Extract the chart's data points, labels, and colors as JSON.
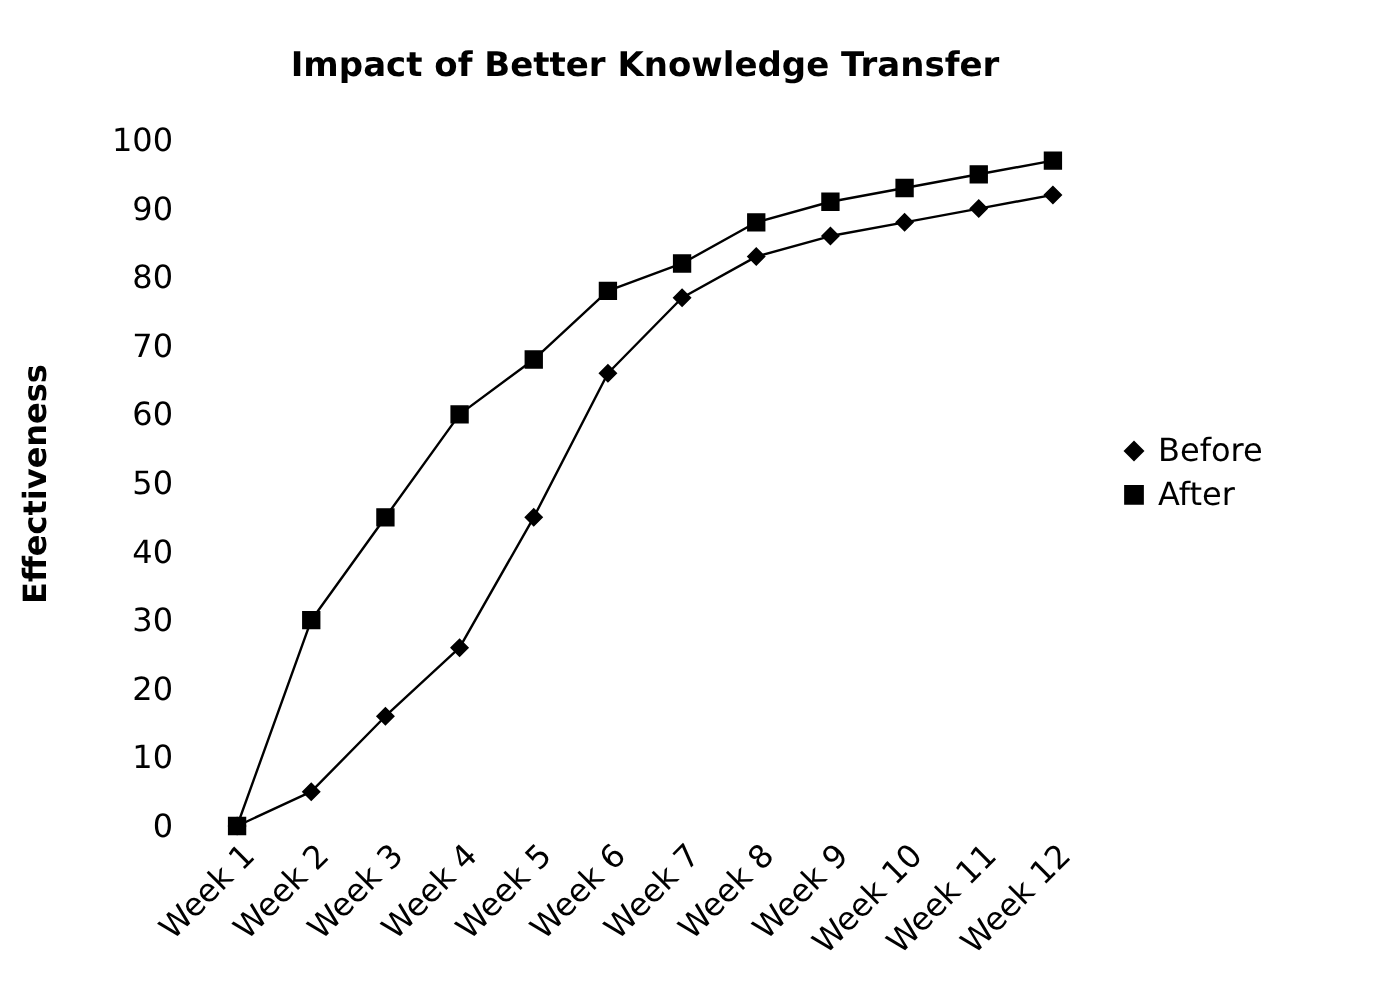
{
  "chart_data": {
    "type": "line",
    "title": "Impact of Better Knowledge Transfer",
    "ylabel": "Effectiveness",
    "categories": [
      "Week 1",
      "Week 2",
      "Week 3",
      "Week 4",
      "Week 5",
      "Week 6",
      "Week 7",
      "Week 8",
      "Week 9",
      "Week 10",
      "Week 11",
      "Week 12"
    ],
    "series": [
      {
        "name": "Before",
        "color": "#000000",
        "marker": "diamond",
        "values": [
          0,
          5,
          16,
          26,
          45,
          66,
          77,
          83,
          86,
          88,
          90,
          92
        ]
      },
      {
        "name": "After",
        "color": "#000000",
        "marker": "square",
        "values": [
          0,
          30,
          45,
          60,
          68,
          78,
          82,
          88,
          91,
          93,
          95,
          97
        ]
      }
    ],
    "ylim": [
      0,
      100
    ],
    "yticks": [
      0,
      10,
      20,
      30,
      40,
      50,
      60,
      70,
      80,
      90,
      100
    ],
    "grid": false,
    "legend": "right",
    "line_style": "solid"
  }
}
